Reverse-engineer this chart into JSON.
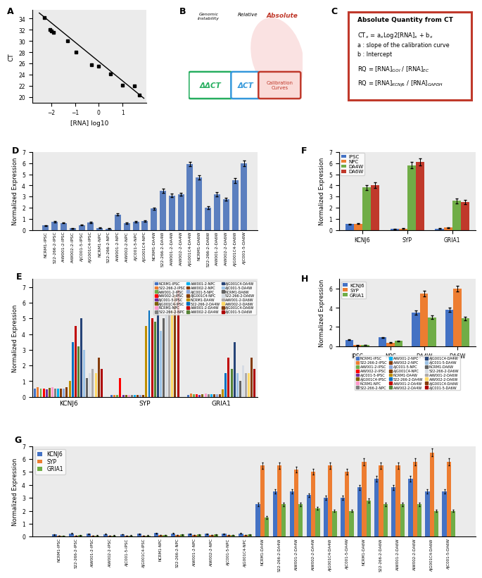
{
  "panel_A": {
    "x": [
      -2.3,
      -2.05,
      -2.0,
      -1.9,
      -1.3,
      -0.95,
      -0.3,
      0.0,
      0.5,
      1.0,
      1.5,
      1.7
    ],
    "y": [
      34.2,
      32.1,
      31.8,
      31.5,
      30.0,
      28.0,
      25.8,
      25.5,
      24.1,
      22.1,
      22.0,
      20.4
    ],
    "line_x": [
      -2.5,
      1.9
    ],
    "line_y": [
      35.0,
      19.8
    ],
    "xlabel": "[RNA] log10",
    "ylabel": "CT",
    "xlim": [
      -2.8,
      2.0
    ],
    "ylim": [
      19,
      35.5
    ],
    "xticks": [
      -2,
      -1,
      0,
      1
    ],
    "yticks": [
      20,
      22,
      24,
      26,
      28,
      30,
      32,
      34
    ]
  },
  "panel_C": {
    "title": "Absolute Quantity from CT",
    "border_color": "#c0392b",
    "bg_color": "#ffffff"
  },
  "panel_D": {
    "categories": [
      "NCRM1-IPSC",
      "522-266-2-IPSC",
      "AiW001-2-IPSC",
      "AiW002-2-IPSC",
      "AJC001-5-IPSC",
      "AJG001C4-IPSC",
      "NCRM1-NPC",
      "522-266-2-NPC",
      "AiW001-2-NPC",
      "AiW002-2-NPC",
      "AJC001-5-NPC",
      "AJG001C4-NPC",
      "NCRM1-DA4W",
      "522-266-2-DA4W",
      "AiW001-2-DA4W",
      "AiW002-2-DA4W",
      "AJG001C4-DA4W",
      "NCRM1-DA6W",
      "522-266-2-DA6W",
      "AiW001-2-DA6W",
      "AiW002-2-DA6W",
      "AJG001C4-DA6W",
      "AJC001-5-DA6W"
    ],
    "values": [
      0.38,
      0.75,
      0.62,
      0.15,
      0.42,
      0.65,
      0.18,
      0.12,
      1.38,
      0.6,
      0.7,
      0.8,
      1.9,
      3.5,
      3.1,
      3.2,
      5.9,
      4.7,
      2.0,
      3.2,
      2.75,
      4.45,
      6.0
    ],
    "errors": [
      0.04,
      0.07,
      0.05,
      0.03,
      0.04,
      0.05,
      0.03,
      0.03,
      0.1,
      0.05,
      0.06,
      0.06,
      0.1,
      0.18,
      0.15,
      0.15,
      0.2,
      0.2,
      0.12,
      0.18,
      0.15,
      0.22,
      0.25
    ],
    "bar_color": "#5b7fbf",
    "ylabel": "Normalized Expression",
    "ylim": [
      0,
      7
    ]
  },
  "panel_E": {
    "genes": [
      "KCNJ6",
      "SYP",
      "GRIA1"
    ],
    "sample_labels": [
      "NCRM1-IPSC",
      "522-266-2-IPSC",
      "AiW001-2-IPSC",
      "AiW002-2-IPSC",
      "AJC001-5-IPSC",
      "AJG001C4-IPSC",
      "NCRM1-NPC",
      "522-266-2-NPC",
      "AiW001-2-NPC",
      "AiW002-2-NPC",
      "AJC001-5-NPC",
      "AJG001C4-NPC",
      "NCRM1-DA4W",
      "522-266-2-DA4W",
      "AiW001-2-DA4W",
      "AiW002-2-DA4W",
      "AJG001C4-DA4W",
      "AJC001-5-DA4W",
      "NCRM1-DA6W",
      "522-266-2-DA6W",
      "AiW001-2-DA6W",
      "AiW002-2-DA6W",
      "AJG001C4-DA6W",
      "AJC001-5-DA6W"
    ],
    "colors": [
      "#4472c4",
      "#ed7d31",
      "#70ad47",
      "#ff0000",
      "#7030a0",
      "#7f6000",
      "#ff99cc",
      "#808080",
      "#00b0f0",
      "#843c0c",
      "#8ea9db",
      "#833c00",
      "#bf8f00",
      "#0070c0",
      "#c00000",
      "#548235",
      "#264478",
      "#9dc3e6",
      "#636363",
      "#d6dce4",
      "#aeaaaa",
      "#ffd966",
      "#843c0c",
      "#ae0000"
    ],
    "kcnj6_values": [
      0.55,
      0.62,
      0.55,
      0.52,
      0.5,
      0.58,
      0.6,
      0.55,
      0.55,
      0.55,
      0.55,
      0.6,
      1.0,
      3.5,
      4.5,
      3.2,
      5.0,
      3.0,
      1.2,
      1.5,
      1.8,
      1.5,
      2.5,
      1.8
    ],
    "syp_values": [
      0.12,
      0.12,
      0.12,
      1.2,
      0.12,
      0.12,
      0.12,
      0.12,
      0.12,
      0.12,
      0.12,
      0.12,
      4.5,
      5.5,
      5.0,
      4.8,
      7.0,
      4.2,
      5.0,
      6.5,
      6.0,
      5.5,
      6.5,
      6.8
    ],
    "gria1_values": [
      0.12,
      0.2,
      0.15,
      0.15,
      0.12,
      0.15,
      0.2,
      0.15,
      0.15,
      0.15,
      0.15,
      0.15,
      0.5,
      1.5,
      2.5,
      1.8,
      3.5,
      1.5,
      1.0,
      2.0,
      1.5,
      1.5,
      2.5,
      1.8
    ],
    "legend_cols": 3,
    "legend_entries_col1": [
      "NCRM1-IPSC",
      "522-266-2-IPSC",
      "AiW001-2-IPSC",
      "AiW002-2-IPSC",
      "AJC001-5-IPSC",
      "AJG001C4-IPSC",
      "NCRM1-NPC",
      "522-266-2-NPC"
    ],
    "legend_entries_col2": [
      "AiW001-2-NPC",
      "AiW002-2-NPC",
      "AJC001-5-NPC",
      "AJG001C4-NPC",
      "NCRM1-DA4W",
      "522-266-2-DA4W",
      "AiW001-2-DA4W",
      "AiW002-2-DA4W"
    ],
    "legend_entries_col3": [
      "AJG001C4-DA4W",
      "AJC001-5-DA4W",
      "NCRM1-DA6W",
      "522-266-2-DA6W",
      "AiW001-2-DA6W",
      "AiW002-2-DA6W",
      "AJG001C4-DA6W",
      "AJC001-5-DA6W"
    ],
    "ylabel": "Normalized Expression",
    "ylim": [
      0,
      7.5
    ]
  },
  "panel_F": {
    "genes": [
      "KCNJ6",
      "SYP",
      "GRIA1"
    ],
    "conditions": [
      "IPSC",
      "NPC",
      "DA4W",
      "DA6W"
    ],
    "colors": [
      "#4472c4",
      "#ed7d31",
      "#70ad47",
      "#c0392b"
    ],
    "kcnj6": [
      0.52,
      0.55,
      3.8,
      4.0
    ],
    "syp": [
      0.08,
      0.12,
      5.8,
      6.1
    ],
    "gria1": [
      0.12,
      0.2,
      2.6,
      2.5
    ],
    "kcnj6_err": [
      0.04,
      0.04,
      0.22,
      0.25
    ],
    "syp_err": [
      0.02,
      0.03,
      0.28,
      0.3
    ],
    "gria1_err": [
      0.03,
      0.04,
      0.2,
      0.2
    ],
    "ylabel": "Normalized Expression",
    "ylim": [
      0,
      7
    ]
  },
  "panel_G": {
    "sample_labels": [
      "NCRM1-IPSC",
      "522-266-2-IPSC",
      "AiW001-2-IPSC",
      "AiW002-2-IPSC",
      "AJC001-5-IPSC",
      "AJG001C4-IPSC",
      "NCRM1-NPC",
      "522-266-2-NPC",
      "AiW001-2-NPC",
      "AiW002-2-NPC",
      "AJC001-5-NPC",
      "AJG001C4-NPC",
      "NCRM1-DA4W",
      "522-266-2-DA4W",
      "AiW001-2-DA4W",
      "AiW002-2-DA4W",
      "AJG001C4-DA4W",
      "AJC001-5-DA4W",
      "NCRM1-DA6W",
      "522-266-2-DA6W",
      "AiW001-2-DA6W",
      "AiW002-2-DA6W",
      "AJG001C4-DA6W",
      "AJC001-5-DA6W"
    ],
    "kcnj6_values": [
      0.15,
      0.25,
      0.22,
      0.2,
      0.18,
      0.22,
      0.28,
      0.25,
      0.22,
      0.22,
      0.22,
      0.25,
      2.5,
      3.5,
      3.5,
      3.2,
      3.0,
      3.0,
      3.8,
      4.5,
      3.8,
      4.5,
      3.5,
      3.5
    ],
    "syp_values": [
      0.08,
      0.08,
      0.08,
      0.08,
      0.08,
      0.08,
      0.12,
      0.12,
      0.12,
      0.12,
      0.12,
      0.12,
      5.5,
      5.5,
      5.2,
      5.0,
      5.5,
      5.0,
      5.8,
      5.5,
      5.5,
      5.8,
      6.5,
      5.8
    ],
    "gria1_values": [
      0.05,
      0.1,
      0.08,
      0.08,
      0.08,
      0.08,
      0.12,
      0.15,
      0.15,
      0.15,
      0.12,
      0.15,
      1.5,
      2.5,
      2.5,
      2.2,
      2.0,
      2.0,
      2.8,
      2.5,
      2.5,
      2.5,
      2.0,
      2.0
    ],
    "kcnj6_err": [
      0.02,
      0.02,
      0.02,
      0.02,
      0.02,
      0.02,
      0.03,
      0.02,
      0.02,
      0.02,
      0.02,
      0.02,
      0.14,
      0.18,
      0.18,
      0.16,
      0.16,
      0.16,
      0.2,
      0.22,
      0.2,
      0.22,
      0.18,
      0.18
    ],
    "syp_err": [
      0.01,
      0.01,
      0.01,
      0.01,
      0.01,
      0.01,
      0.02,
      0.02,
      0.02,
      0.02,
      0.02,
      0.02,
      0.25,
      0.25,
      0.22,
      0.22,
      0.25,
      0.22,
      0.28,
      0.25,
      0.25,
      0.28,
      0.3,
      0.28
    ],
    "gria1_err": [
      0.01,
      0.015,
      0.015,
      0.015,
      0.015,
      0.015,
      0.02,
      0.02,
      0.02,
      0.02,
      0.015,
      0.02,
      0.1,
      0.14,
      0.14,
      0.1,
      0.1,
      0.1,
      0.16,
      0.14,
      0.14,
      0.14,
      0.1,
      0.1
    ],
    "colors": [
      "#4472c4",
      "#ed7d31",
      "#70ad47"
    ],
    "genes": [
      "KCNJ6",
      "SYP",
      "GRIA1"
    ],
    "ylabel": "Normalized Expression",
    "ylim": [
      0,
      7
    ]
  },
  "panel_H": {
    "conditions": [
      "IPSC",
      "NPC",
      "DA4W",
      "DA6W"
    ],
    "genes": [
      "KCNJ6",
      "SYP",
      "GRIA1"
    ],
    "colors": [
      "#4472c4",
      "#ed7d31",
      "#70ad47"
    ],
    "kcnj6": [
      0.65,
      0.9,
      3.5,
      3.8
    ],
    "syp": [
      0.1,
      0.35,
      5.5,
      6.0
    ],
    "gria1": [
      0.12,
      0.55,
      3.0,
      2.9
    ],
    "kcnj6_err": [
      0.04,
      0.06,
      0.2,
      0.22
    ],
    "syp_err": [
      0.02,
      0.04,
      0.28,
      0.3
    ],
    "gria1_err": [
      0.02,
      0.05,
      0.18,
      0.18
    ],
    "ylabel": "Normalized Expression",
    "ylim": [
      0,
      7
    ]
  },
  "panel_bg": "#ebebeb"
}
